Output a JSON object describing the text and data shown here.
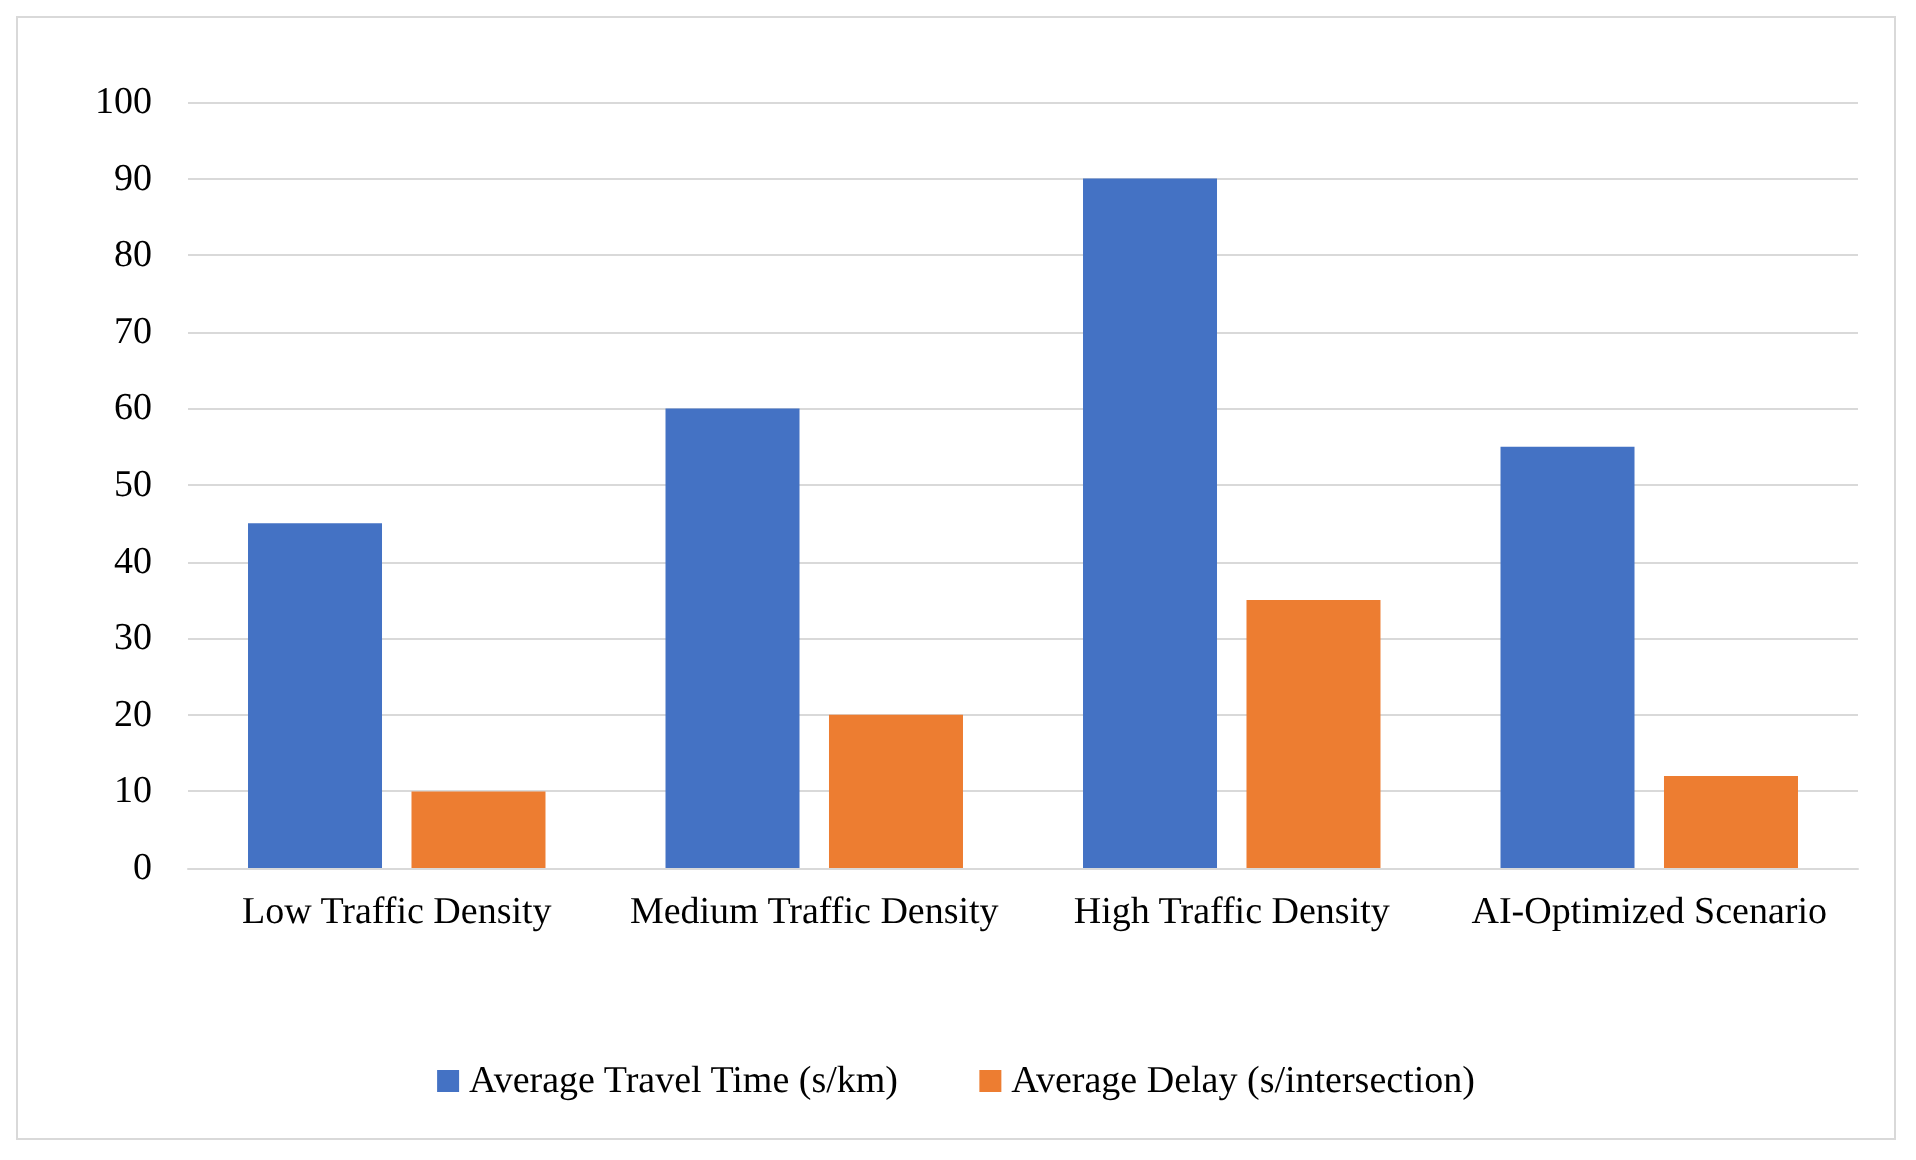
{
  "chart_data": {
    "type": "bar",
    "categories": [
      "Low Traffic Density",
      "Medium Traffic Density",
      "High Traffic Density",
      "AI-Optimized Scenario"
    ],
    "series": [
      {
        "name": "Average Travel Time (s/km)",
        "color": "#4472c4",
        "values": [
          45,
          60,
          90,
          55
        ]
      },
      {
        "name": "Average Delay (s/intersection)",
        "color": "#ed7d31",
        "values": [
          10,
          20,
          35,
          12
        ]
      }
    ],
    "ylim": [
      0,
      100
    ],
    "yticks": [
      0,
      10,
      20,
      30,
      40,
      50,
      60,
      70,
      80,
      90,
      100
    ],
    "grid": "y",
    "legend": "bottom"
  }
}
